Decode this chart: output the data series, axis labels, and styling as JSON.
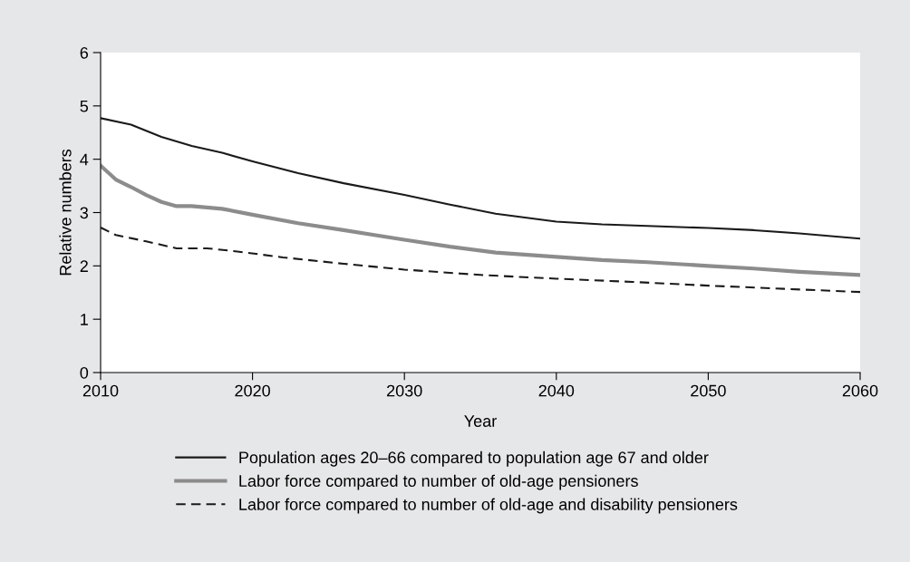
{
  "chart_data": {
    "type": "line",
    "xlabel": "Year",
    "ylabel": "Relative numbers",
    "xlim": [
      2010,
      2060
    ],
    "xticks": [
      2010,
      2020,
      2030,
      2040,
      2050,
      2060
    ],
    "ylim": [
      0,
      6
    ],
    "yticks": [
      0,
      1,
      2,
      3,
      4,
      5,
      6
    ],
    "grid": false,
    "legend": "bottom",
    "series": [
      {
        "name": "Population ages 20–66 compared to population age 67 and older",
        "color": "#1a1a1a",
        "line_style": "solid",
        "x": [
          2010,
          2012,
          2014,
          2016,
          2018,
          2020,
          2023,
          2026,
          2030,
          2033,
          2036,
          2040,
          2043,
          2046,
          2050,
          2053,
          2056,
          2060
        ],
        "values": [
          4.77,
          4.65,
          4.42,
          4.25,
          4.12,
          3.96,
          3.74,
          3.55,
          3.33,
          3.15,
          2.98,
          2.83,
          2.78,
          2.75,
          2.71,
          2.67,
          2.61,
          2.51
        ]
      },
      {
        "name": "Labor force compared to number of old-age pensioners",
        "color": "#8c8c8c",
        "line_style": "solid",
        "x": [
          2010,
          2011,
          2012,
          2013,
          2014,
          2015,
          2016,
          2018,
          2020,
          2023,
          2026,
          2030,
          2033,
          2036,
          2040,
          2043,
          2046,
          2050,
          2053,
          2056,
          2060
        ],
        "values": [
          3.88,
          3.62,
          3.48,
          3.33,
          3.2,
          3.12,
          3.12,
          3.07,
          2.96,
          2.8,
          2.67,
          2.49,
          2.36,
          2.25,
          2.17,
          2.11,
          2.07,
          2.0,
          1.95,
          1.89,
          1.83
        ]
      },
      {
        "name": "Labor force compared to number of old-age and disability pensioners",
        "color": "#1a1a1a",
        "line_style": "dashed",
        "x": [
          2010,
          2011,
          2013,
          2015,
          2017,
          2019,
          2022,
          2026,
          2030,
          2035,
          2040,
          2045,
          2050,
          2055,
          2060
        ],
        "values": [
          2.72,
          2.58,
          2.46,
          2.33,
          2.33,
          2.27,
          2.16,
          2.04,
          1.93,
          1.83,
          1.76,
          1.7,
          1.63,
          1.57,
          1.51
        ]
      }
    ]
  }
}
